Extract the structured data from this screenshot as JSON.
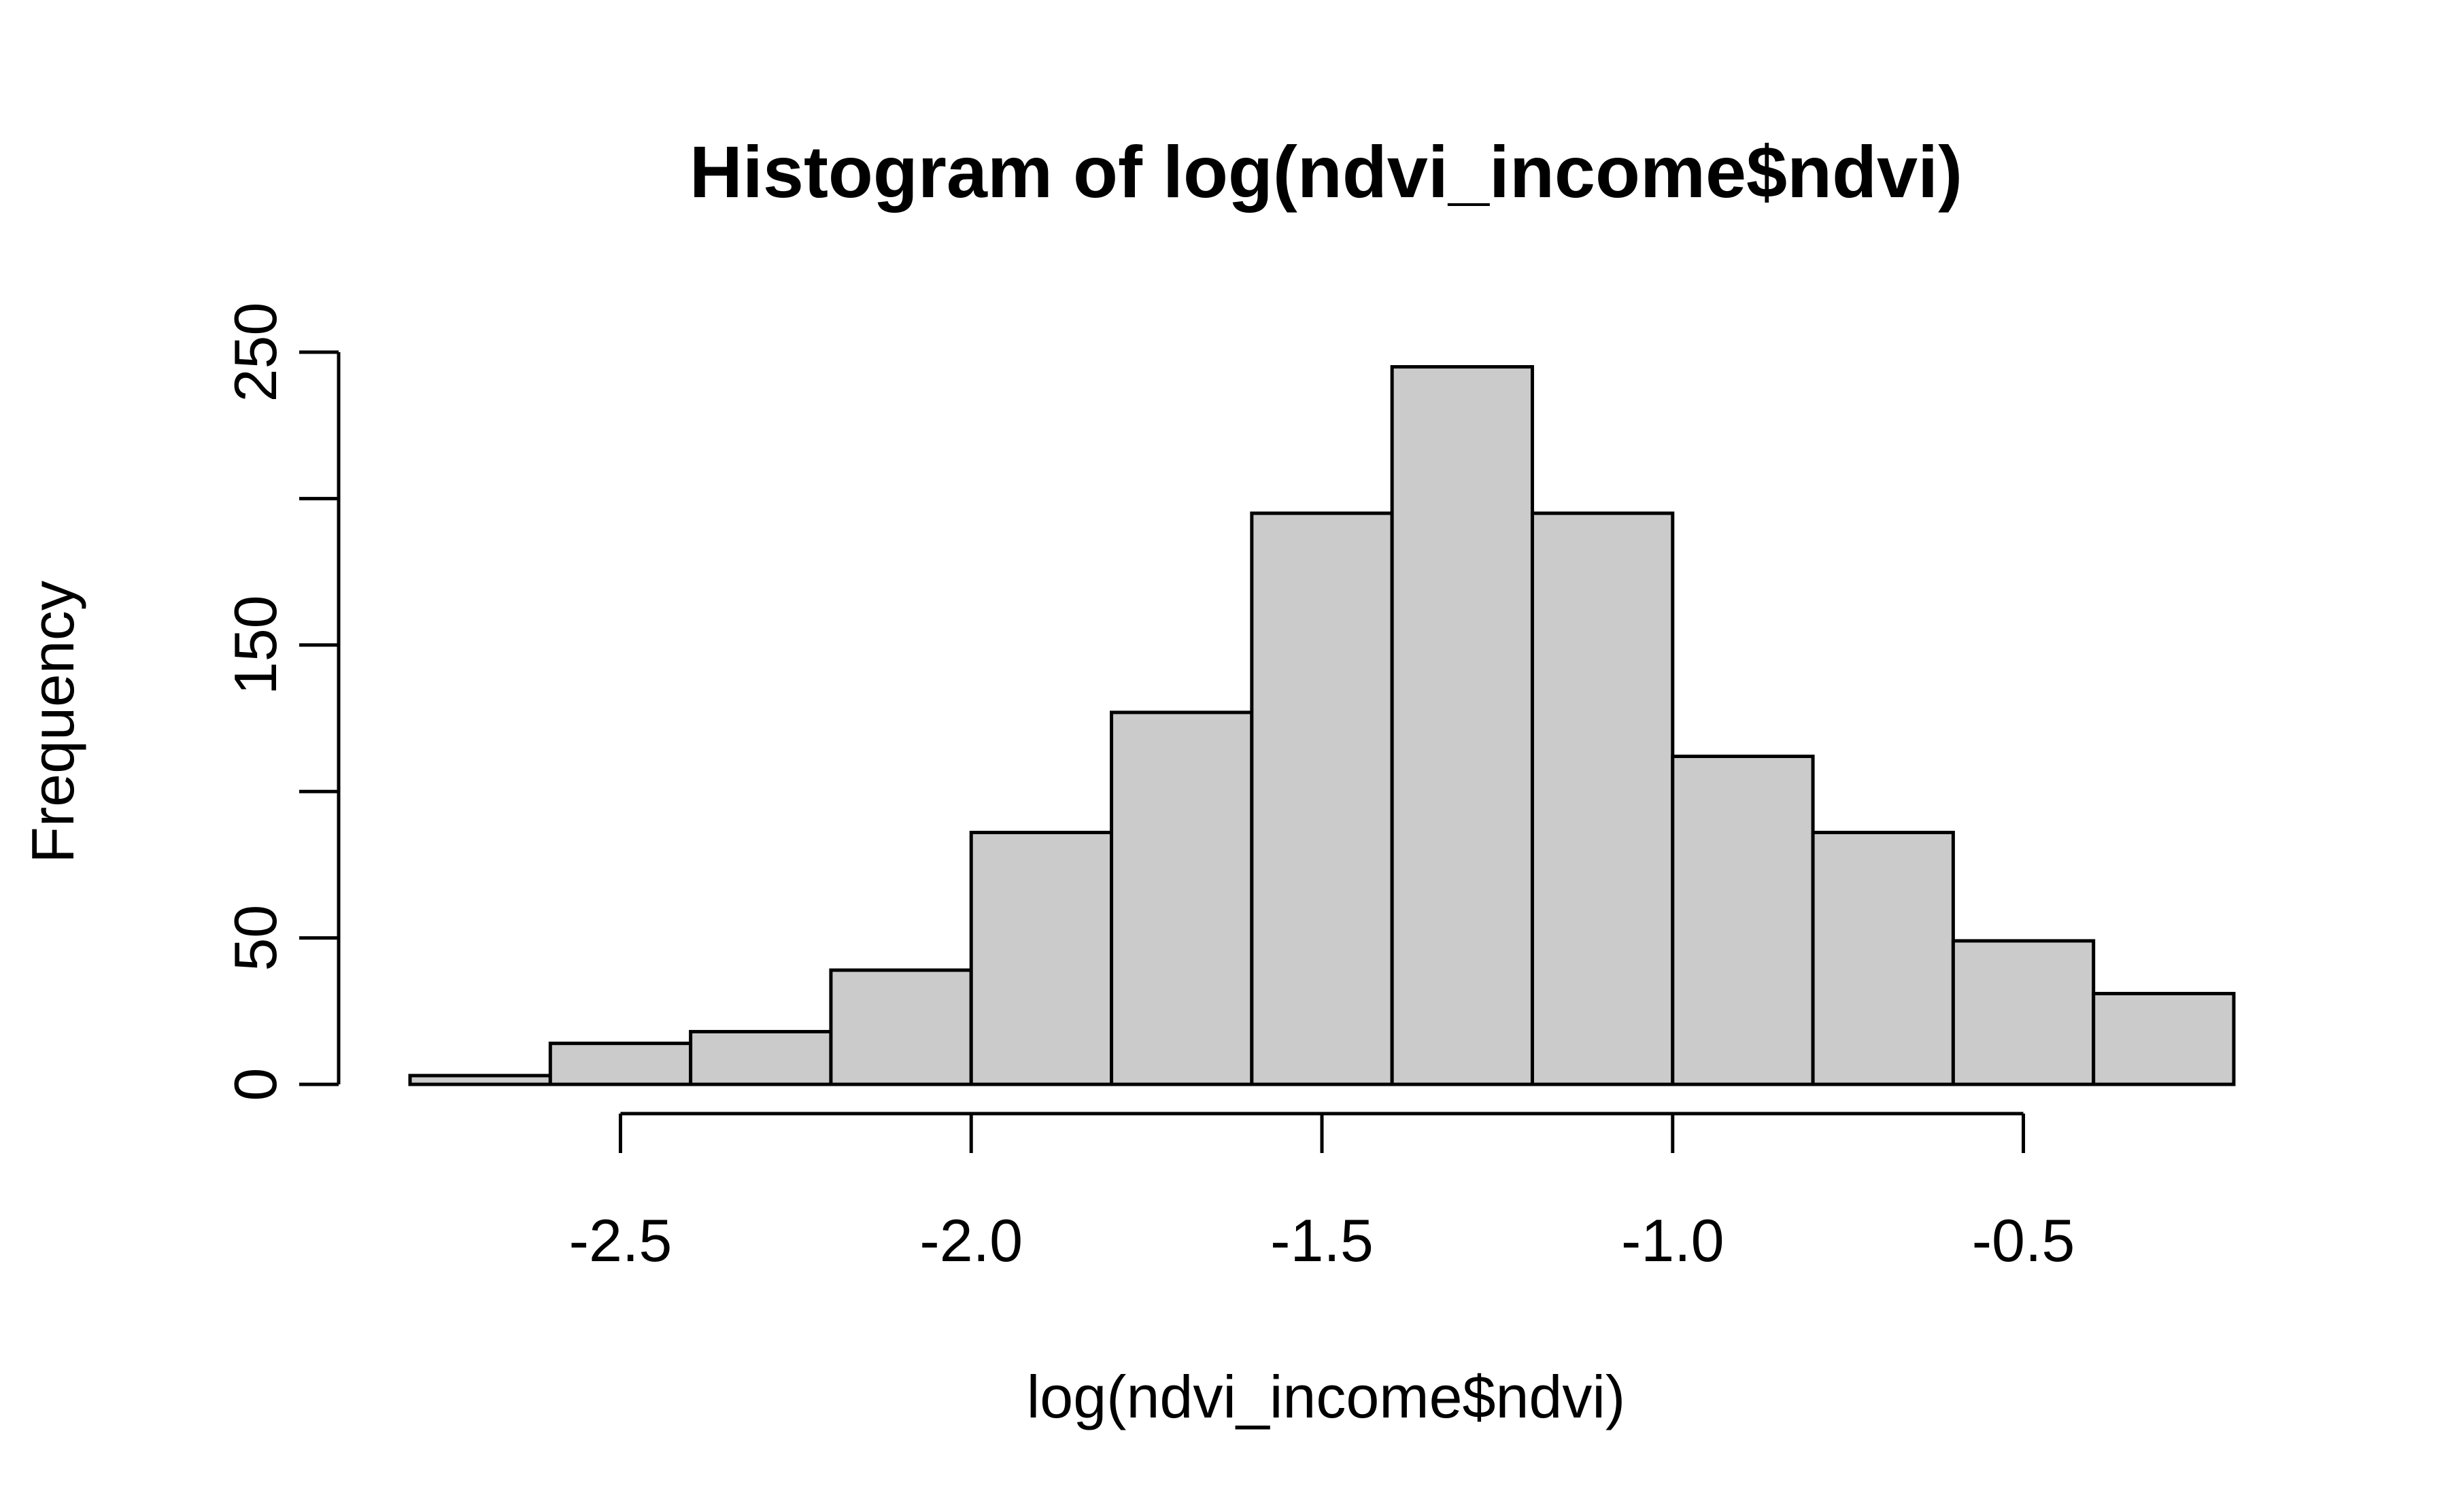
{
  "chart_data": {
    "type": "bar",
    "title": "Histogram of log(ndvi_income$ndvi)",
    "xlabel": "log(ndvi_income$ndvi)",
    "ylabel": "Frequency",
    "bins": [
      {
        "x0": -2.8,
        "x1": -2.6,
        "count": 3
      },
      {
        "x0": -2.6,
        "x1": -2.4,
        "count": 14
      },
      {
        "x0": -2.4,
        "x1": -2.2,
        "count": 18
      },
      {
        "x0": -2.2,
        "x1": -2.0,
        "count": 39
      },
      {
        "x0": -2.0,
        "x1": -1.8,
        "count": 86
      },
      {
        "x0": -1.8,
        "x1": -1.6,
        "count": 127
      },
      {
        "x0": -1.6,
        "x1": -1.4,
        "count": 195
      },
      {
        "x0": -1.4,
        "x1": -1.2,
        "count": 245
      },
      {
        "x0": -1.2,
        "x1": -1.0,
        "count": 195
      },
      {
        "x0": -1.0,
        "x1": -0.8,
        "count": 112
      },
      {
        "x0": -0.8,
        "x1": -0.6,
        "count": 86
      },
      {
        "x0": -0.6,
        "x1": -0.4,
        "count": 49
      },
      {
        "x0": -0.4,
        "x1": -0.2,
        "count": 31
      }
    ],
    "xlim": [
      -2.8,
      -0.2
    ],
    "ylim": [
      0,
      250
    ],
    "x_ticks": [
      -2.5,
      -2.0,
      -1.5,
      -1.0,
      -0.5
    ],
    "x_tick_labels": [
      "-2.5",
      "-2.0",
      "-1.5",
      "-1.0",
      "-0.5"
    ],
    "y_ticks": [
      0,
      50,
      100,
      150,
      200,
      250
    ],
    "y_tick_labels": [
      "0",
      "50",
      "",
      "150",
      "",
      "250"
    ],
    "bar_fill": "#cbcbcb",
    "bar_stroke": "#000000",
    "grid": false,
    "legend": "none"
  }
}
